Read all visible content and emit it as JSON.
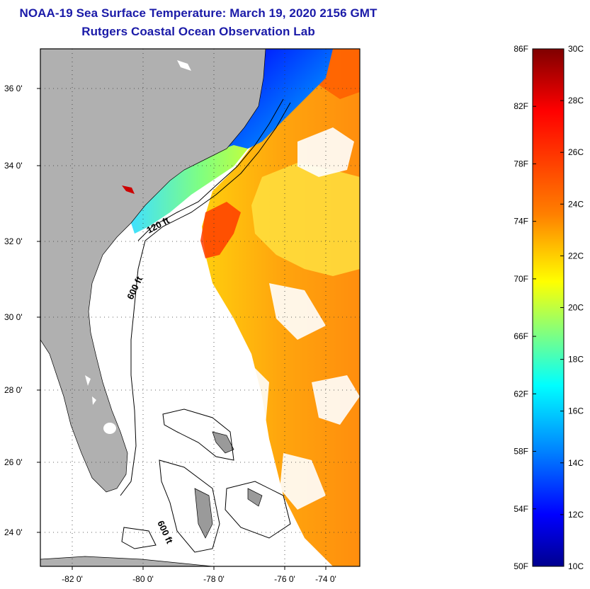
{
  "title": "NOAA-19 Sea Surface Temperature:  March 19, 2020 2156 GMT",
  "subtitle": "Rutgers Coastal Ocean Observation Lab",
  "map": {
    "lat_labels": [
      "36 0'",
      "34 0'",
      "32 0'",
      "30 0'",
      "28 0'",
      "26 0'",
      "24 0'"
    ],
    "lon_labels": [
      "-82 0'",
      "-80 0'",
      "-78 0'",
      "-76 0'",
      "-74 0'"
    ],
    "contour_labels": [
      "120 ft",
      "600 ft",
      "600 ft"
    ],
    "land_color": "#b0b0b0",
    "ocean_color": "#ffffff"
  },
  "colorbar": {
    "f_labels": [
      "86F",
      "82F",
      "78F",
      "74F",
      "70F",
      "66F",
      "62F",
      "58F",
      "54F",
      "50F"
    ],
    "c_labels": [
      "30C",
      "28C",
      "26C",
      "24C",
      "22C",
      "20C",
      "18C",
      "16C",
      "14C",
      "12C",
      "10C"
    ],
    "colors": [
      "#7f0000",
      "#ff0000",
      "#ff8000",
      "#ffff00",
      "#80ff80",
      "#00ffff",
      "#0080ff",
      "#0000ff",
      "#00008f"
    ]
  }
}
